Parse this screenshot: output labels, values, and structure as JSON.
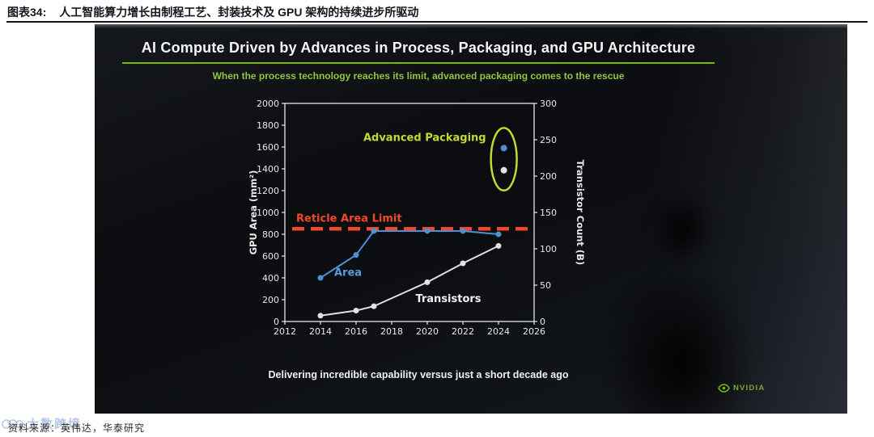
{
  "header": {
    "label": "图表34:",
    "title": "人工智能算力增长由制程工艺、封装技术及 GPU 架构的持续进步所驱动"
  },
  "slide": {
    "title": "AI Compute Driven by Advances in Process, Packaging, and GPU Architecture",
    "subtitle": "When the process technology reaches its limit, advanced packaging comes to the rescue",
    "caption": "Delivering incredible capability versus just a short decade ago",
    "brand": "NVIDIA",
    "accent_green": "#76b900"
  },
  "chart_data": {
    "type": "line",
    "x_axis": {
      "min": 2012,
      "max": 2026,
      "ticks": [
        2012,
        2014,
        2016,
        2018,
        2020,
        2022,
        2024,
        2026
      ]
    },
    "left_axis": {
      "label": "GPU Area (mm²)",
      "min": 0,
      "max": 2000,
      "ticks": [
        0,
        200,
        400,
        600,
        800,
        1000,
        1200,
        1400,
        1600,
        1800,
        2000
      ]
    },
    "right_axis": {
      "label": "Transistor Count (B)",
      "min": 0,
      "max": 300,
      "ticks": [
        0,
        50,
        100,
        150,
        200,
        250,
        300
      ]
    },
    "series": [
      {
        "name": "Area",
        "axis": "left",
        "color": "#4f8fd6",
        "x": [
          2014,
          2016,
          2017,
          2020,
          2022,
          2024
        ],
        "values": [
          400,
          610,
          830,
          830,
          830,
          800
        ]
      },
      {
        "name": "Transistors",
        "axis": "right",
        "color": "#e2e2e2",
        "x": [
          2014,
          2016,
          2017,
          2020,
          2022,
          2024
        ],
        "values": [
          8,
          15,
          21,
          54,
          80,
          104
        ]
      }
    ],
    "advanced_packaging_points": [
      {
        "axis": "left",
        "x": 2024.3,
        "value": 1590,
        "color": "#4f8fd6"
      },
      {
        "axis": "right",
        "x": 2024.3,
        "value": 208,
        "color": "#e2e2e2"
      }
    ],
    "reticle_limit": {
      "label": "Reticle Area Limit",
      "axis": "left",
      "value": 850,
      "color": "#f1482a"
    },
    "annotations": {
      "advanced_packaging_label": {
        "text": "Advanced Packaging",
        "color": "#c6d831"
      },
      "area_label": {
        "text": "Area",
        "color": "#5a9ae0"
      },
      "transistors_label": {
        "text": "Transistors",
        "color": "#f0f0f0"
      }
    },
    "grid": false,
    "legend": "inline-labels"
  },
  "footer": {
    "watermark": "大数跨境",
    "source": "资料来源：英伟达，华泰研究"
  }
}
